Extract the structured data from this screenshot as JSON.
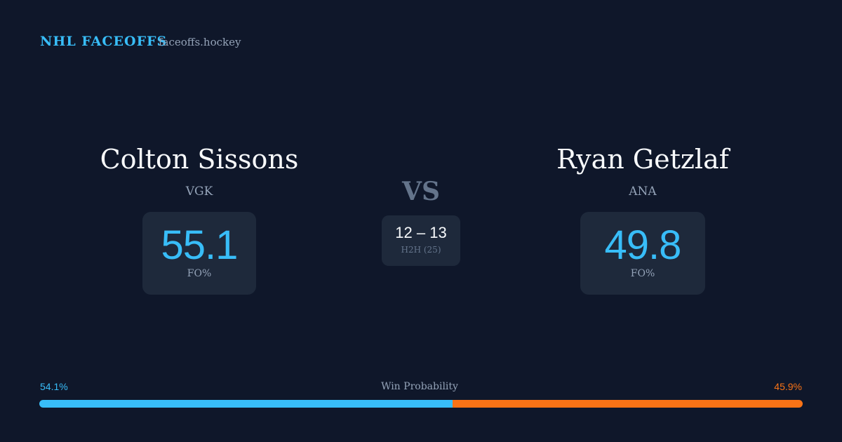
{
  "header": {
    "title": "NHL FACEOFFS",
    "site": "faceoffs.hockey"
  },
  "players": [
    {
      "name": "Colton Sissons",
      "team": "VGK",
      "fo_pct": 55.1,
      "fo_label": "FO%"
    },
    {
      "name": "Ryan Getzlaf",
      "team": "ANA",
      "fo_pct": 49.8,
      "fo_label": "FO%"
    }
  ],
  "versus": "VS",
  "head_to_head": {
    "score": "12 – 13",
    "label": "H2H (25)"
  },
  "win_probability": {
    "label": "Win Probability",
    "values": [
      54.1,
      45.9
    ],
    "value_labels": [
      "54.1%",
      "45.9%"
    ],
    "colors": [
      "#38bdf8",
      "#f97316"
    ]
  }
}
